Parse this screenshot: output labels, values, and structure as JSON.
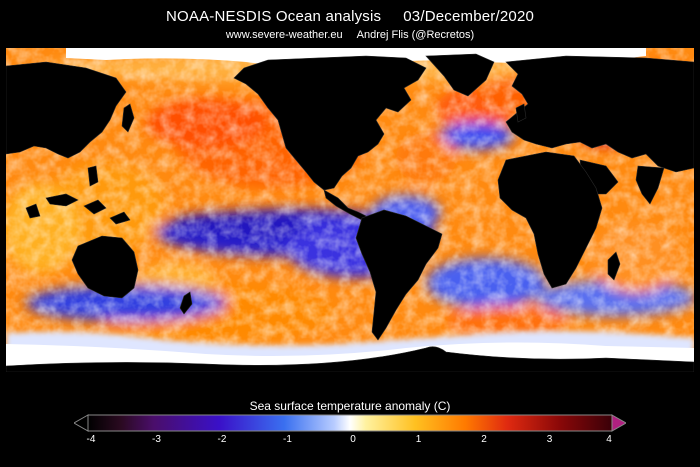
{
  "header": {
    "title": "NOAA-NESDIS Ocean analysis",
    "date": "03/December/2020",
    "website": "www.severe-weather.eu",
    "author": "Andrej Flis (@Recretos)"
  },
  "colorbar": {
    "title": "Sea surface temperature anomaly (C)",
    "ticks": [
      "-4",
      "-3",
      "-2",
      "-1",
      "0",
      "1",
      "2",
      "3",
      "4"
    ],
    "range": [
      -4,
      4
    ],
    "colors": [
      "#3a0a12",
      "#5a1a8a",
      "#2a1ad0",
      "#3a6af0",
      "#ffffff",
      "#ffe040",
      "#ff7a00",
      "#d01010",
      "#5a0008"
    ],
    "extend_arrows": "both"
  },
  "map": {
    "projection": "equirectangular",
    "land_color": "#000000",
    "sea_ice_color": "#ffffff",
    "boundaries_color": "#333333"
  }
}
